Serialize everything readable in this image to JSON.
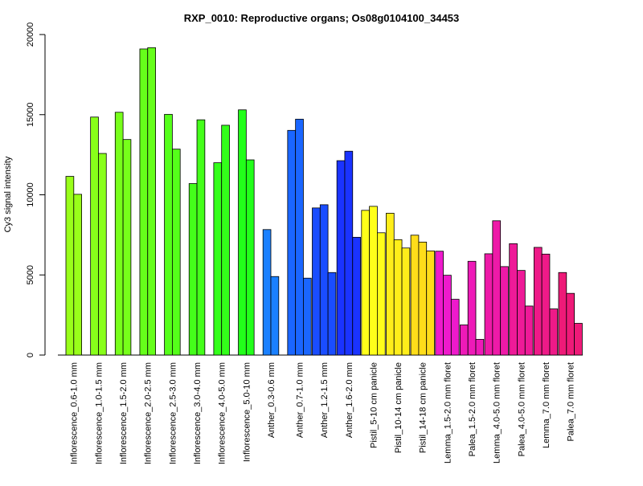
{
  "chart_data": {
    "type": "bar",
    "title": "RXP_0010: Reproductive organs; Os08g0104100_34453",
    "xlabel": "",
    "ylabel": "Cy3 signal intensity",
    "ylim": [
      0,
      20000
    ],
    "yticks": [
      0,
      5000,
      10000,
      15000,
      20000
    ],
    "grid": false,
    "legend": "none",
    "groups": [
      {
        "label": "Inflorescence_0.6-1.0 mm",
        "color": "#99ff1a",
        "values": [
          11150,
          10030
        ]
      },
      {
        "label": "Inflorescence_1.0-1.5 mm",
        "color": "#88ff1a",
        "values": [
          14850,
          12580
        ]
      },
      {
        "label": "Inflorescence_1.5-2.0 mm",
        "color": "#77ff1a",
        "values": [
          15150,
          13450
        ]
      },
      {
        "label": "Inflorescence_2.0-2.5 mm",
        "color": "#66ff1a",
        "values": [
          19100,
          19180
        ]
      },
      {
        "label": "Inflorescence_2.5-3.0 mm",
        "color": "#55ff1a",
        "values": [
          15020,
          12850
        ]
      },
      {
        "label": "Inflorescence_3.0-4.0 mm",
        "color": "#44ff1a",
        "values": [
          10700,
          14680
        ]
      },
      {
        "label": "Inflorescence_4.0-5.0 mm",
        "color": "#33ff1a",
        "values": [
          12000,
          14340
        ]
      },
      {
        "label": "Inflorescence_5.0-10 mm",
        "color": "#22ff1a",
        "values": [
          15300,
          12180
        ]
      },
      {
        "label": "Anther_0.3-0.6 mm",
        "color": "#1a80ff",
        "values": [
          7830,
          4900
        ]
      },
      {
        "label": "Anther_0.7-1.0 mm",
        "color": "#1a66ff",
        "values": [
          14020,
          14720,
          4800
        ]
      },
      {
        "label": "Anther_1.2-1.5 mm",
        "color": "#1a4dff",
        "values": [
          9180,
          9380,
          5150
        ]
      },
      {
        "label": "Anther_1.6-2.0 mm",
        "color": "#1a33ff",
        "values": [
          12130,
          12720,
          7350
        ]
      },
      {
        "label": "Pistil_5-10 cm panicle",
        "color": "#ffff1a",
        "values": [
          9030,
          9280,
          7630
        ]
      },
      {
        "label": "Pistil_10-14 cm panicle",
        "color": "#ffee1a",
        "values": [
          8850,
          7200,
          6680
        ]
      },
      {
        "label": "Pistil_14-18 cm panicle",
        "color": "#ffdd1a",
        "values": [
          7480,
          7050,
          6500
        ]
      },
      {
        "label": "Lemma_1.5-2.0 mm floret",
        "color": "#ee1acc",
        "values": [
          6480,
          4980,
          3480
        ]
      },
      {
        "label": "Palea_1.5-2.0 mm floret",
        "color": "#ee1ab8",
        "values": [
          1880,
          5850,
          980
        ]
      },
      {
        "label": "Lemma_4.0-5.0 mm floret",
        "color": "#ee1aa8",
        "values": [
          6320,
          8380,
          5520
        ]
      },
      {
        "label": "Palea_4.0-5.0 mm floret",
        "color": "#ee1a98",
        "values": [
          6950,
          5280,
          3060
        ]
      },
      {
        "label": "Lemma_7.0 mm floret",
        "color": "#ee1a88",
        "values": [
          6720,
          6300,
          2880
        ]
      },
      {
        "label": "Palea_7.0 mm floret",
        "color": "#ee1a78",
        "values": [
          5150,
          3850,
          1980
        ]
      }
    ]
  }
}
